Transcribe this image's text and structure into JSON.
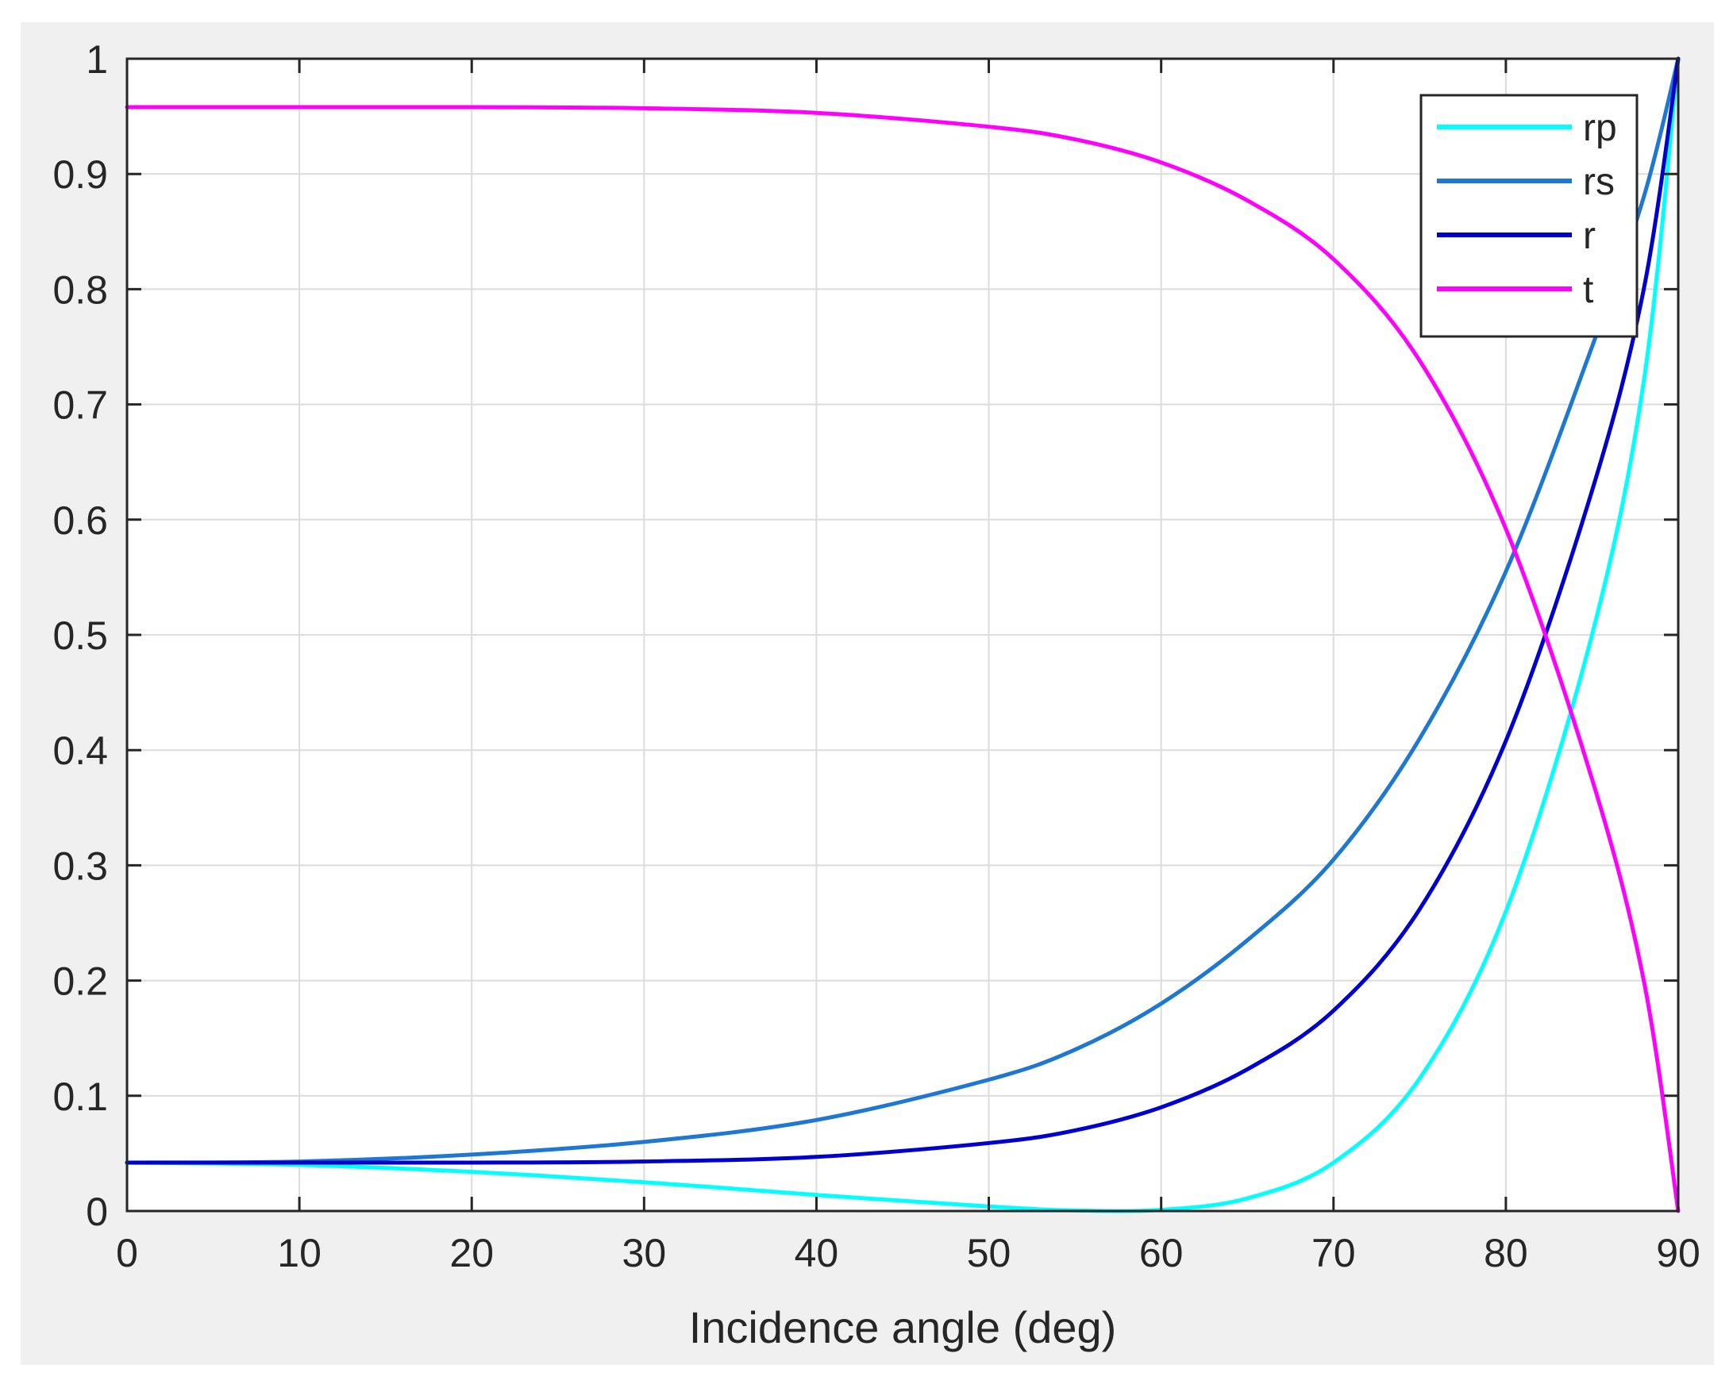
{
  "figure": {
    "background": "#f0f0f0",
    "axes_background": "#ffffff"
  },
  "chart_data": {
    "type": "line",
    "title": "",
    "xlabel": "Incidence angle (deg)",
    "ylabel": "",
    "xlim": [
      0,
      90
    ],
    "ylim": [
      0,
      1
    ],
    "xticks": [
      0,
      10,
      20,
      30,
      40,
      50,
      60,
      70,
      80,
      90
    ],
    "yticks": [
      0,
      0.1,
      0.2,
      0.3,
      0.4,
      0.5,
      0.6,
      0.7,
      0.8,
      0.9,
      1
    ],
    "xtick_labels": [
      "0",
      "10",
      "20",
      "30",
      "40",
      "50",
      "60",
      "70",
      "80",
      "90"
    ],
    "ytick_labels": [
      "0",
      "0.1",
      "0.2",
      "0.3",
      "0.4",
      "0.5",
      "0.6",
      "0.7",
      "0.8",
      "0.9",
      "1"
    ],
    "grid": true,
    "legend_position": "top-right",
    "x": [
      0,
      10,
      20,
      30,
      40,
      50,
      55,
      60,
      65,
      70,
      75,
      80,
      85,
      88,
      90
    ],
    "series": [
      {
        "name": "rp",
        "color": "#00ffff",
        "values": [
          0.042,
          0.04,
          0.034,
          0.025,
          0.014,
          0.004,
          0.0005,
          0.001,
          0.011,
          0.042,
          0.115,
          0.26,
          0.5,
          0.72,
          1.0
        ]
      },
      {
        "name": "rs",
        "color": "#1e78d2",
        "values": [
          0.042,
          0.043,
          0.049,
          0.06,
          0.079,
          0.114,
          0.14,
          0.18,
          0.235,
          0.305,
          0.41,
          0.555,
          0.75,
          0.88,
          1.0
        ]
      },
      {
        "name": "r",
        "color": "#0000cd",
        "values": [
          0.042,
          0.042,
          0.042,
          0.043,
          0.047,
          0.059,
          0.07,
          0.09,
          0.123,
          0.174,
          0.262,
          0.408,
          0.625,
          0.8,
          1.0
        ]
      },
      {
        "name": "t",
        "color": "#ff00ff",
        "values": [
          0.958,
          0.958,
          0.958,
          0.957,
          0.953,
          0.941,
          0.93,
          0.91,
          0.877,
          0.826,
          0.738,
          0.592,
          0.375,
          0.2,
          0.0
        ]
      }
    ]
  }
}
